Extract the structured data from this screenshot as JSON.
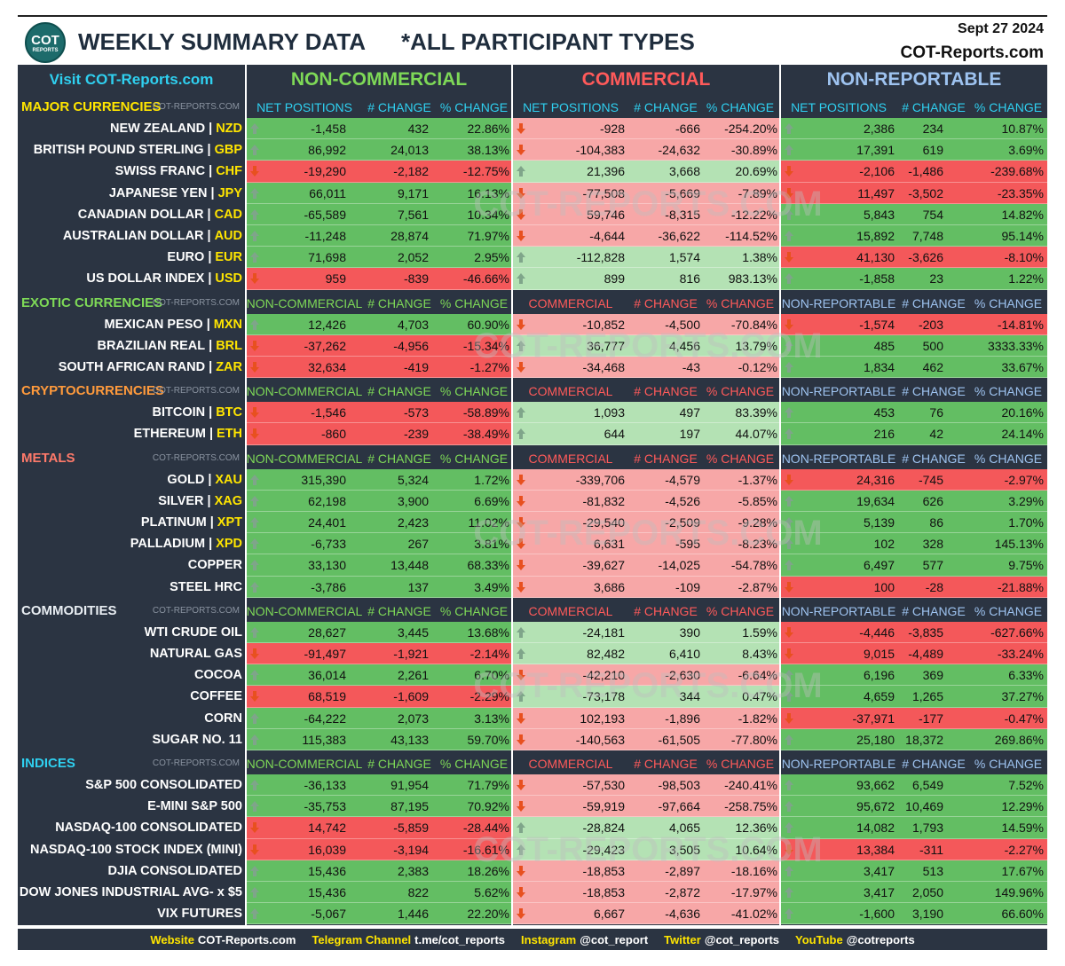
{
  "header": {
    "logo": {
      "top": "COT",
      "bottom": "REPORTS"
    },
    "title": "WEEKLY SUMMARY DATA",
    "subtitle": "*ALL PARTICIPANT TYPES",
    "date": "Sept 27 2024",
    "site": "COT-Reports.com"
  },
  "visit": "Visit COT-Reports.com",
  "watermark": "COT-REPORTS.COM",
  "separator": "|",
  "groups": [
    {
      "title": "NON-COMMERCIAL",
      "color": "#7ed957",
      "up": "#63be63",
      "down": "#f4585a"
    },
    {
      "title": "COMMERCIAL",
      "color": "#ff5a5a",
      "up": "#b4e2b4",
      "down": "#f7a7a7"
    },
    {
      "title": "NON-REPORTABLE",
      "color": "#9ec3f0",
      "up": "#63be63",
      "down": "#f4585a"
    }
  ],
  "sections": [
    {
      "name": "MAJOR CURRENCIES",
      "color": "#ffe500",
      "column_color": "#2fd0f0",
      "columns": [
        [
          "NET POSITIONS",
          "# CHANGE",
          "% CHANGE"
        ],
        [
          "NET POSITIONS",
          "# CHANGE",
          "% CHANGE"
        ],
        [
          "NET POSITIONS",
          "# CHANGE",
          "% CHANGE"
        ]
      ],
      "rows": [
        {
          "name": "NEW ZEALAND",
          "code": "NZD",
          "values": [
            "-1,458",
            "432",
            "22.86%",
            "-928",
            "-666",
            "-254.20%",
            "2,386",
            "234",
            "10.87%"
          ]
        },
        {
          "name": "BRITISH POUND STERLING",
          "code": "GBP",
          "values": [
            "86,992",
            "24,013",
            "38.13%",
            "-104,383",
            "-24,632",
            "-30.89%",
            "17,391",
            "619",
            "3.69%"
          ]
        },
        {
          "name": "SWISS FRANC",
          "code": "CHF",
          "values": [
            "-19,290",
            "-2,182",
            "-12.75%",
            "21,396",
            "3,668",
            "20.69%",
            "-2,106",
            "-1,486",
            "-239.68%"
          ]
        },
        {
          "name": "JAPANESE YEN",
          "code": "JPY",
          "values": [
            "66,011",
            "9,171",
            "16.13%",
            "-77,508",
            "-5,669",
            "-7.89%",
            "11,497",
            "-3,502",
            "-23.35%"
          ]
        },
        {
          "name": "CANADIAN DOLLAR",
          "code": "CAD",
          "values": [
            "-65,589",
            "7,561",
            "10.34%",
            "59,746",
            "-8,315",
            "-12.22%",
            "5,843",
            "754",
            "14.82%"
          ]
        },
        {
          "name": "AUSTRALIAN DOLLAR",
          "code": "AUD",
          "values": [
            "-11,248",
            "28,874",
            "71.97%",
            "-4,644",
            "-36,622",
            "-114.52%",
            "15,892",
            "7,748",
            "95.14%"
          ]
        },
        {
          "name": "EURO",
          "code": "EUR",
          "values": [
            "71,698",
            "2,052",
            "2.95%",
            "-112,828",
            "1,574",
            "1.38%",
            "41,130",
            "-3,626",
            "-8.10%"
          ]
        },
        {
          "name": "US DOLLAR INDEX",
          "code": "USD",
          "values": [
            "959",
            "-839",
            "-46.66%",
            "899",
            "816",
            "983.13%",
            "-1,858",
            "23",
            "1.22%"
          ]
        }
      ]
    },
    {
      "name": "EXOTIC CURRENCIES",
      "color": "#7ed957",
      "columns": [
        [
          "NON-COMMERCIAL",
          "# CHANGE",
          "% CHANGE"
        ],
        [
          "COMMERCIAL",
          "# CHANGE",
          "% CHANGE"
        ],
        [
          "NON-REPORTABLE",
          "# CHANGE",
          "% CHANGE"
        ]
      ],
      "rows": [
        {
          "name": "MEXICAN PESO",
          "code": "MXN",
          "values": [
            "12,426",
            "4,703",
            "60.90%",
            "-10,852",
            "-4,500",
            "-70.84%",
            "-1,574",
            "-203",
            "-14.81%"
          ]
        },
        {
          "name": "BRAZILIAN REAL",
          "code": "BRL",
          "values": [
            "-37,262",
            "-4,956",
            "-15.34%",
            "36,777",
            "4,456",
            "13.79%",
            "485",
            "500",
            "3333.33%"
          ]
        },
        {
          "name": "SOUTH AFRICAN RAND",
          "code": "ZAR",
          "values": [
            "32,634",
            "-419",
            "-1.27%",
            "-34,468",
            "-43",
            "-0.12%",
            "1,834",
            "462",
            "33.67%"
          ]
        }
      ]
    },
    {
      "name": "CRYPTOCURRENCIES",
      "color": "#ff9a3c",
      "columns": [
        [
          "NON-COMMERCIAL",
          "# CHANGE",
          "% CHANGE"
        ],
        [
          "COMMERCIAL",
          "# CHANGE",
          "% CHANGE"
        ],
        [
          "NON-REPORTABLE",
          "# CHANGE",
          "% CHANGE"
        ]
      ],
      "rows": [
        {
          "name": "BITCOIN",
          "code": "BTC",
          "values": [
            "-1,546",
            "-573",
            "-58.89%",
            "1,093",
            "497",
            "83.39%",
            "453",
            "76",
            "20.16%"
          ]
        },
        {
          "name": "ETHEREUM",
          "code": "ETH",
          "values": [
            "-860",
            "-239",
            "-38.49%",
            "644",
            "197",
            "44.07%",
            "216",
            "42",
            "24.14%"
          ]
        }
      ]
    },
    {
      "name": "METALS",
      "color": "#ff7a6a",
      "columns": [
        [
          "NON-COMMERCIAL",
          "# CHANGE",
          "% CHANGE"
        ],
        [
          "COMMERCIAL",
          "# CHANGE",
          "% CHANGE"
        ],
        [
          "NON-REPORTABLE",
          "# CHANGE",
          "% CHANGE"
        ]
      ],
      "rows": [
        {
          "name": "GOLD",
          "code": "XAU",
          "values": [
            "315,390",
            "5,324",
            "1.72%",
            "-339,706",
            "-4,579",
            "-1.37%",
            "24,316",
            "-745",
            "-2.97%"
          ]
        },
        {
          "name": "SILVER",
          "code": "XAG",
          "values": [
            "62,198",
            "3,900",
            "6.69%",
            "-81,832",
            "-4,526",
            "-5.85%",
            "19,634",
            "626",
            "3.29%"
          ]
        },
        {
          "name": "PLATINUM",
          "code": "XPT",
          "values": [
            "24,401",
            "2,423",
            "11.02%",
            "-29,540",
            "-2,509",
            "-9.28%",
            "5,139",
            "86",
            "1.70%"
          ]
        },
        {
          "name": "PALLADIUM",
          "code": "XPD",
          "values": [
            "-6,733",
            "267",
            "3.81%",
            "6,631",
            "-595",
            "-8.23%",
            "102",
            "328",
            "145.13%"
          ]
        },
        {
          "name": "COPPER",
          "values": [
            "33,130",
            "13,448",
            "68.33%",
            "-39,627",
            "-14,025",
            "-54.78%",
            "6,497",
            "577",
            "9.75%"
          ]
        },
        {
          "name": "STEEL HRC",
          "values": [
            "-3,786",
            "137",
            "3.49%",
            "3,686",
            "-109",
            "-2.87%",
            "100",
            "-28",
            "-21.88%"
          ]
        }
      ]
    },
    {
      "name": "COMMODITIES",
      "color": "#e8edf2",
      "columns": [
        [
          "NON-COMMERCIAL",
          "# CHANGE",
          "% CHANGE"
        ],
        [
          "COMMERCIAL",
          "# CHANGE",
          "% CHANGE"
        ],
        [
          "NON-REPORTABLE",
          "# CHANGE",
          "% CHANGE"
        ]
      ],
      "rows": [
        {
          "name": "WTI CRUDE OIL",
          "values": [
            "28,627",
            "3,445",
            "13.68%",
            "-24,181",
            "390",
            "1.59%",
            "-4,446",
            "-3,835",
            "-627.66%"
          ]
        },
        {
          "name": "NATURAL GAS",
          "values": [
            "-91,497",
            "-1,921",
            "-2.14%",
            "82,482",
            "6,410",
            "8.43%",
            "9,015",
            "-4,489",
            "-33.24%"
          ]
        },
        {
          "name": "COCOA",
          "values": [
            "36,014",
            "2,261",
            "6.70%",
            "-42,210",
            "-2,630",
            "-6.64%",
            "6,196",
            "369",
            "6.33%"
          ]
        },
        {
          "name": "COFFEE",
          "values": [
            "68,519",
            "-1,609",
            "-2.29%",
            "-73,178",
            "344",
            "0.47%",
            "4,659",
            "1,265",
            "37.27%"
          ]
        },
        {
          "name": "CORN",
          "values": [
            "-64,222",
            "2,073",
            "3.13%",
            "102,193",
            "-1,896",
            "-1.82%",
            "-37,971",
            "-177",
            "-0.47%"
          ]
        },
        {
          "name": "SUGAR NO. 11",
          "values": [
            "115,383",
            "43,133",
            "59.70%",
            "-140,563",
            "-61,505",
            "-77.80%",
            "25,180",
            "18,372",
            "269.86%"
          ]
        }
      ]
    },
    {
      "name": "INDICES",
      "color": "#2fd0f0",
      "columns": [
        [
          "NON-COMMERCIAL",
          "# CHANGE",
          "% CHANGE"
        ],
        [
          "COMMERCIAL",
          "# CHANGE",
          "% CHANGE"
        ],
        [
          "NON-REPORTABLE",
          "# CHANGE",
          "% CHANGE"
        ]
      ],
      "rows": [
        {
          "name": "S&P 500 CONSOLIDATED",
          "values": [
            "-36,133",
            "91,954",
            "71.79%",
            "-57,530",
            "-98,503",
            "-240.41%",
            "93,662",
            "6,549",
            "7.52%"
          ]
        },
        {
          "name": "E-MINI S&P 500",
          "values": [
            "-35,753",
            "87,195",
            "70.92%",
            "-59,919",
            "-97,664",
            "-258.75%",
            "95,672",
            "10,469",
            "12.29%"
          ]
        },
        {
          "name": "NASDAQ-100 CONSOLIDATED",
          "values": [
            "14,742",
            "-5,859",
            "-28.44%",
            "-28,824",
            "4,065",
            "12.36%",
            "14,082",
            "1,793",
            "14.59%"
          ]
        },
        {
          "name": "NASDAQ-100 STOCK INDEX (MINI)",
          "values": [
            "16,039",
            "-3,194",
            "-16.61%",
            "-29,423",
            "3,505",
            "10.64%",
            "13,384",
            "-311",
            "-2.27%"
          ]
        },
        {
          "name": "DJIA CONSOLIDATED",
          "values": [
            "15,436",
            "2,383",
            "18.26%",
            "-18,853",
            "-2,897",
            "-18.16%",
            "3,417",
            "513",
            "17.67%"
          ]
        },
        {
          "name": "DOW JONES INDUSTRIAL AVG- x $5",
          "values": [
            "15,436",
            "822",
            "5.62%",
            "-18,853",
            "-2,872",
            "-17.97%",
            "3,417",
            "2,050",
            "149.96%"
          ]
        },
        {
          "name": "VIX FUTURES",
          "values": [
            "-5,067",
            "1,446",
            "22.20%",
            "6,667",
            "-4,636",
            "-41.02%",
            "-1,600",
            "3,190",
            "66.60%"
          ]
        }
      ]
    }
  ],
  "footer": [
    {
      "label": "Website",
      "value": "COT-Reports.com"
    },
    {
      "label": "Telegram Channel",
      "value": "t.me/cot_reports"
    },
    {
      "label": "Instagram",
      "value": "@cot_report"
    },
    {
      "label": "Twitter",
      "value": "@cot_reports"
    },
    {
      "label": "YouTube",
      "value": "@cotreports"
    }
  ]
}
